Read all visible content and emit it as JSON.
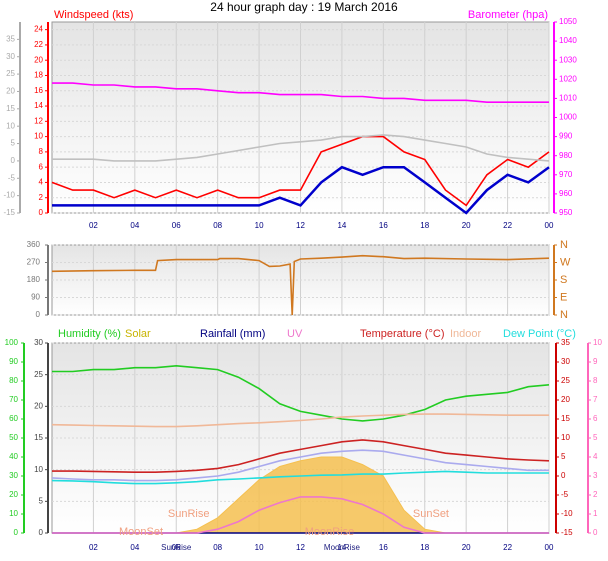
{
  "chart_data": [
    {
      "type": "line",
      "title": "24 hour graph day : 19 March 2016",
      "grid": true,
      "x": [
        0,
        1,
        2,
        3,
        4,
        5,
        6,
        7,
        8,
        9,
        10,
        11,
        12,
        13,
        14,
        15,
        16,
        17,
        18,
        19,
        20,
        21,
        22,
        23,
        24
      ],
      "xlim": [
        0,
        24
      ],
      "xticks": [
        {
          "value": 2,
          "label": "02"
        },
        {
          "value": 4,
          "label": "04"
        },
        {
          "value": 6,
          "label": "06"
        },
        {
          "value": 8,
          "label": "08"
        },
        10,
        12,
        14,
        16,
        18,
        20,
        22,
        {
          "value": 24,
          "label": "00"
        }
      ],
      "ylim": [
        0,
        25
      ],
      "yticks": [
        0,
        2,
        4,
        6,
        8,
        10,
        12,
        14,
        16,
        18,
        20,
        22,
        24
      ],
      "y2lim": [
        950,
        1050
      ],
      "y2ticks": [
        950,
        960,
        970,
        980,
        990,
        1000,
        1010,
        1020,
        1030,
        1040,
        1050
      ],
      "y3lim": [
        -15,
        40
      ],
      "y3ticks": [
        -15,
        -10,
        -5,
        0,
        5,
        10,
        15,
        20,
        25,
        30,
        35
      ],
      "series": [
        {
          "name": "Windspeed (kts)",
          "color": "#ff0000",
          "values": [
            4,
            3,
            3,
            2,
            3,
            2,
            3,
            2,
            3,
            2,
            2,
            3,
            3,
            8,
            9,
            10,
            10,
            8,
            7,
            3,
            1,
            5,
            7,
            6,
            8
          ]
        },
        {
          "color": "#0000cc",
          "values": [
            1,
            1,
            1,
            1,
            1,
            1,
            1,
            1,
            1,
            1,
            1,
            2,
            1,
            4,
            6,
            5,
            6,
            6,
            4,
            2,
            0,
            3,
            5,
            4,
            6
          ]
        },
        {
          "name": "Barometer (hpa)",
          "color": "#ff00ff",
          "axis": "y2",
          "values": [
            1018,
            1018,
            1017,
            1017,
            1016,
            1016,
            1015,
            1015,
            1014,
            1013,
            1013,
            1012,
            1012,
            1012,
            1011,
            1011,
            1010,
            1010,
            1009,
            1009,
            1009,
            1008,
            1008,
            1008,
            1008
          ]
        },
        {
          "color": "#c0c0c0",
          "axis": "y3",
          "values": [
            0.5,
            0.5,
            0.5,
            0,
            0,
            0,
            0.5,
            1,
            2,
            3,
            4,
            5,
            5.5,
            6,
            7,
            7,
            7.5,
            7,
            6,
            5,
            4,
            2,
            1,
            0.5,
            0
          ]
        }
      ]
    },
    {
      "type": "line",
      "grid": true,
      "x": [
        0,
        2,
        4,
        5,
        5.1,
        6,
        8,
        8.1,
        9,
        10,
        10.5,
        11,
        11.5,
        11.6,
        11.7,
        12,
        13,
        14,
        15,
        16,
        17,
        18,
        20,
        22,
        24
      ],
      "xlim": [
        0,
        24
      ],
      "ylim": [
        0,
        360
      ],
      "yticks": [
        0,
        90,
        180,
        270,
        360
      ],
      "y2lim": [
        0,
        360
      ],
      "y2ticks": [
        {
          "value": 0,
          "label": "N"
        },
        {
          "value": 90,
          "label": "E"
        },
        {
          "value": 180,
          "label": "S"
        },
        {
          "value": 270,
          "label": "W"
        },
        {
          "value": 360,
          "label": "N"
        }
      ],
      "series": [
        {
          "color": "#d07820",
          "values": [
            225,
            228,
            230,
            230,
            280,
            285,
            285,
            290,
            290,
            280,
            250,
            252,
            262,
            0,
            275,
            288,
            292,
            298,
            305,
            300,
            290,
            292,
            288,
            285,
            292
          ]
        }
      ]
    },
    {
      "type": "line",
      "grid": true,
      "x": [
        0,
        1,
        2,
        3,
        4,
        5,
        6,
        7,
        8,
        9,
        10,
        11,
        12,
        13,
        14,
        15,
        16,
        17,
        18,
        19,
        20,
        21,
        22,
        23,
        24
      ],
      "xlim": [
        0,
        24
      ],
      "xticks": [
        {
          "value": 2,
          "label": "02"
        },
        {
          "value": 4,
          "label": "04"
        },
        {
          "value": 6,
          "label": "06"
        },
        {
          "value": 8,
          "label": "08"
        },
        10,
        12,
        14,
        16,
        18,
        20,
        22,
        {
          "value": 24,
          "label": "00"
        }
      ],
      "ylim": [
        0,
        100
      ],
      "yticks": [
        0,
        10,
        20,
        30,
        40,
        50,
        60,
        70,
        80,
        90,
        100
      ],
      "y2lim": [
        -15,
        35
      ],
      "y2ticks": [
        -15,
        -10,
        -5,
        0,
        5,
        10,
        15,
        20,
        25,
        30,
        35
      ],
      "y3lim": [
        0,
        10
      ],
      "y3ticks": [
        0,
        1,
        2,
        3,
        4,
        5,
        6,
        7,
        8,
        9,
        10
      ],
      "y4lim": [
        0,
        30
      ],
      "y4ticks": [
        0,
        5,
        10,
        15,
        20,
        25,
        30
      ],
      "series": [
        {
          "name": "Humidity (%)",
          "color": "#22cc22",
          "values": [
            85,
            85,
            86,
            86,
            87,
            87,
            88,
            87,
            86,
            82,
            76,
            68,
            64,
            62,
            60,
            59,
            60,
            62,
            65,
            70,
            72,
            73,
            74,
            77,
            78
          ]
        },
        {
          "name": "Solar",
          "color": "#f5c050",
          "area": true,
          "values": [
            0,
            0,
            0,
            0,
            0,
            0,
            0,
            2,
            8,
            18,
            28,
            35,
            38,
            40,
            40,
            36,
            30,
            12,
            2,
            0,
            0,
            0,
            0,
            0,
            0
          ]
        },
        {
          "name": "Rainfall (mm)",
          "color": "#000080",
          "axis": "y4",
          "values": [
            0,
            0,
            0,
            0,
            0,
            0,
            0,
            0,
            0,
            0,
            0,
            0,
            0,
            0,
            0,
            0,
            0,
            0,
            0,
            0,
            0,
            0,
            0,
            0,
            0
          ]
        },
        {
          "name": "UV",
          "color": "#ee77cc",
          "axis": "y3",
          "values": [
            0,
            0,
            0,
            0,
            0,
            0,
            0,
            0,
            0.2,
            0.6,
            1.2,
            1.6,
            1.9,
            1.9,
            1.8,
            1.5,
            1.0,
            0.3,
            0,
            0,
            0,
            0,
            0,
            0,
            0
          ]
        },
        {
          "name": "Temperature (°C)",
          "color": "#cc2222",
          "axis": "y2",
          "values": [
            1.3,
            1.3,
            1.2,
            1.1,
            1.0,
            1.0,
            1.2,
            1.5,
            2.0,
            3.0,
            4.5,
            6.0,
            7.0,
            8.0,
            9.0,
            9.5,
            9.0,
            8.0,
            7.0,
            6.0,
            5.5,
            5.0,
            4.5,
            4.2,
            4.0
          ]
        },
        {
          "name": "Indoor",
          "color": "#f0b898",
          "axis": "y2",
          "values": [
            13.5,
            13.4,
            13.3,
            13.2,
            13.1,
            13,
            13,
            13.2,
            13.5,
            13.8,
            14,
            14.3,
            14.6,
            15,
            15.5,
            15.8,
            16,
            16.2,
            16.3,
            16.3,
            16.2,
            16.1,
            16,
            16,
            16
          ]
        },
        {
          "name": "Dew Point (°C)",
          "color": "#22dddd",
          "axis": "y2",
          "values": [
            -1.2,
            -1.3,
            -1.5,
            -1.8,
            -2,
            -2,
            -1.8,
            -1.5,
            -1,
            -0.8,
            -0.5,
            -0.2,
            0,
            0.2,
            0.3,
            0.5,
            0.5,
            0.8,
            1.0,
            1.2,
            1.0,
            0.8,
            0.8,
            0.8,
            0.8
          ]
        },
        {
          "color": "#aaaaee",
          "axis": "y2",
          "values": [
            -0.5,
            -0.8,
            -1,
            -1,
            -1.2,
            -1.2,
            -1,
            -0.5,
            0,
            1,
            2.5,
            4,
            5,
            6,
            6.5,
            6.8,
            6.5,
            5.5,
            4.5,
            3.5,
            3,
            2.5,
            2,
            1.5,
            1.5
          ]
        }
      ],
      "annotations": [
        {
          "text": "SunRise",
          "x": 6.6
        },
        {
          "text": "SunSet",
          "x": 18.3
        },
        {
          "text": "MoonSet",
          "x": 4.3
        },
        {
          "text": "MoonRise",
          "x": 13.4
        }
      ],
      "axis_markers": [
        {
          "text": "SunRise",
          "x": 6.0
        },
        {
          "text": "MoonRise",
          "x": 14.0
        }
      ]
    }
  ]
}
